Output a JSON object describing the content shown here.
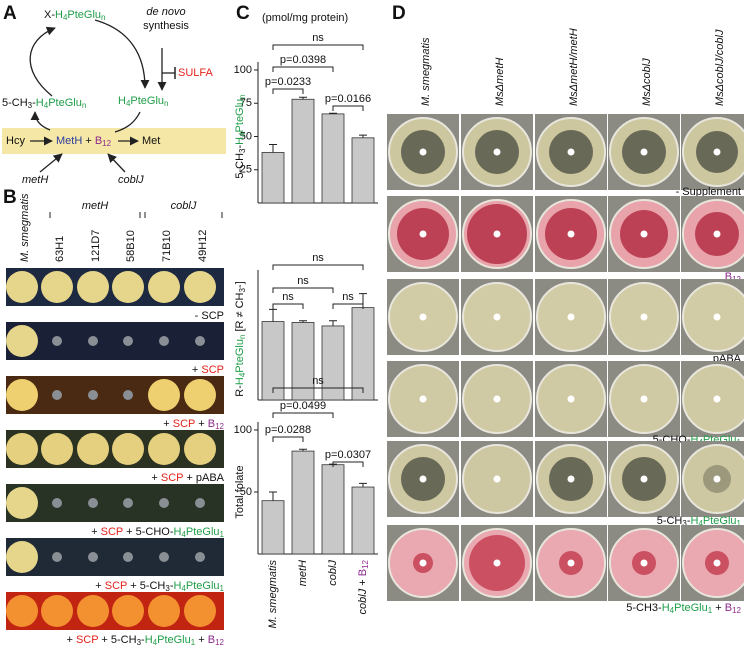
{
  "panel_labels": [
    "A",
    "B",
    "C",
    "D"
  ],
  "diagram": {
    "labels": [
      [
        {
          "t": "X-"
        },
        {
          "t": "H",
          "c": "#1f9e48"
        },
        {
          "t": "4",
          "c": "#1f9e48",
          "sub": true
        },
        {
          "t": "PteGlu",
          "c": "#1f9e48"
        },
        {
          "t": "n",
          "c": "#1f9e48",
          "sub": true
        }
      ],
      [
        {
          "t": "de novo",
          "i": true
        }
      ],
      [
        {
          "t": "synthesis"
        }
      ],
      [
        {
          "t": "SULFA",
          "c": "#e2231a"
        }
      ],
      [
        {
          "t": "5-CH"
        },
        {
          "t": "3",
          "sub": true
        },
        {
          "t": "-"
        },
        {
          "t": "H",
          "c": "#1f9e48"
        },
        {
          "t": "4",
          "c": "#1f9e48",
          "sub": true
        },
        {
          "t": "PteGlu",
          "c": "#1f9e48"
        },
        {
          "t": "n",
          "c": "#1f9e48",
          "sub": true
        }
      ],
      [
        {
          "t": "H",
          "c": "#1f9e48"
        },
        {
          "t": "4",
          "c": "#1f9e48",
          "sub": true
        },
        {
          "t": "PteGlu",
          "c": "#1f9e48"
        },
        {
          "t": "n",
          "c": "#1f9e48",
          "sub": true
        }
      ],
      [
        {
          "t": "Hcy"
        }
      ],
      [
        {
          "t": "MetH",
          "c": "#2b3c9c"
        },
        {
          "t": " + "
        },
        {
          "t": "B",
          "c": "#8e2a8e"
        },
        {
          "t": "12",
          "c": "#8e2a8e",
          "sub": true
        }
      ],
      [
        {
          "t": "Met"
        }
      ],
      [
        {
          "t": "metH",
          "i": true
        }
      ],
      [
        {
          "t": "coblJ",
          "i": true
        }
      ]
    ]
  },
  "growth": {
    "columns": [
      "M. smegmatis",
      "63H1",
      "121D7",
      "58B10",
      "71B10",
      "49H12"
    ],
    "groups": [
      "metH",
      "coblJ"
    ],
    "row_labels": [
      [
        {
          "t": "- SCP"
        }
      ],
      [
        {
          "t": "+ "
        },
        {
          "t": "SCP",
          "c": "#e2231a"
        }
      ],
      [
        {
          "t": "+ "
        },
        {
          "t": "SCP",
          "c": "#e2231a"
        },
        {
          "t": " + "
        },
        {
          "t": "B",
          "c": "#8e2a8e"
        },
        {
          "t": "12",
          "c": "#8e2a8e",
          "sub": true
        }
      ],
      [
        {
          "t": "+ "
        },
        {
          "t": "SCP",
          "c": "#e2231a"
        },
        {
          "t": " + pABA"
        }
      ],
      [
        {
          "t": "+ "
        },
        {
          "t": "SCP",
          "c": "#e2231a"
        },
        {
          "t": " + 5-CHO-"
        },
        {
          "t": "H",
          "c": "#1f9e48"
        },
        {
          "t": "4",
          "c": "#1f9e48",
          "sub": true
        },
        {
          "t": "PteGlu",
          "c": "#1f9e48"
        },
        {
          "t": "1",
          "c": "#1f9e48",
          "sub": true
        }
      ],
      [
        {
          "t": "+ "
        },
        {
          "t": "SCP",
          "c": "#e2231a"
        },
        {
          "t": " + 5-CH"
        },
        {
          "t": "3",
          "sub": true
        },
        {
          "t": "-"
        },
        {
          "t": "H",
          "c": "#1f9e48"
        },
        {
          "t": "4",
          "c": "#1f9e48",
          "sub": true
        },
        {
          "t": "PteGlu",
          "c": "#1f9e48"
        },
        {
          "t": "1",
          "c": "#1f9e48",
          "sub": true
        }
      ],
      [
        {
          "t": "+ "
        },
        {
          "t": "SCP",
          "c": "#e2231a"
        },
        {
          "t": " + 5-CH"
        },
        {
          "t": "3",
          "sub": true
        },
        {
          "t": "-"
        },
        {
          "t": "H",
          "c": "#1f9e48"
        },
        {
          "t": "4",
          "c": "#1f9e48",
          "sub": true
        },
        {
          "t": "PteGlu",
          "c": "#1f9e48"
        },
        {
          "t": "1",
          "c": "#1f9e48",
          "sub": true
        },
        {
          "t": " + "
        },
        {
          "t": "B",
          "c": "#8e2a8e"
        },
        {
          "t": "12",
          "c": "#8e2a8e",
          "sub": true
        }
      ]
    ]
  },
  "plates": {
    "columns": [
      "M. smegmatis",
      "MsΔmetH",
      "MsΔmetH/metH",
      "MsΔcoblJ",
      "MsΔcoblJ/coblJ"
    ],
    "row_labels": [
      [
        {
          "t": "- Supplement"
        }
      ],
      [
        {
          "t": "B",
          "c": "#8e2a8e"
        },
        {
          "t": "12",
          "c": "#8e2a8e",
          "sub": true
        }
      ],
      [
        {
          "t": "pABA"
        }
      ],
      [
        {
          "t": "5-CHO-"
        },
        {
          "t": "H",
          "c": "#1f9e48"
        },
        {
          "t": "4",
          "c": "#1f9e48",
          "sub": true
        },
        {
          "t": "PteGlu",
          "c": "#1f9e48"
        },
        {
          "t": "1",
          "c": "#1f9e48",
          "sub": true
        }
      ],
      [
        {
          "t": "5-CH"
        },
        {
          "t": "3",
          "sub": true
        },
        {
          "t": "-"
        },
        {
          "t": "H",
          "c": "#1f9e48"
        },
        {
          "t": "4",
          "c": "#1f9e48",
          "sub": true
        },
        {
          "t": "PteGlu",
          "c": "#1f9e48"
        },
        {
          "t": "1",
          "c": "#1f9e48",
          "sub": true
        }
      ],
      [
        {
          "t": "5-CH3-"
        },
        {
          "t": "H",
          "c": "#1f9e48"
        },
        {
          "t": "4",
          "c": "#1f9e48",
          "sub": true
        },
        {
          "t": "PteGlu",
          "c": "#1f9e48"
        },
        {
          "t": "1",
          "c": "#1f9e48",
          "sub": true
        },
        {
          "t": " + "
        },
        {
          "t": "B",
          "c": "#8e2a8e"
        },
        {
          "t": "12",
          "c": "#8e2a8e",
          "sub": true
        }
      ]
    ]
  },
  "chart_data": [
    {
      "type": "bar",
      "subtitle": "(pmol/mg protein)",
      "y_label": [
        {
          "t": "5-CH"
        },
        {
          "t": "3",
          "sub": true
        },
        {
          "t": "-"
        },
        {
          "t": "H",
          "c": "#1f9e48"
        },
        {
          "t": "4",
          "c": "#1f9e48",
          "sub": true
        },
        {
          "t": "PteGlu",
          "c": "#1f9e48"
        },
        {
          "t": "n",
          "c": "#1f9e48",
          "sub": true
        }
      ],
      "values": [
        38,
        78,
        67,
        49
      ],
      "errors": [
        6,
        1.5,
        0.5,
        2
      ],
      "color": "#c8c8c8",
      "ylim": [
        0,
        100
      ],
      "yticks": [
        25,
        50,
        75,
        100
      ],
      "annotations": [
        {
          "label": "ns",
          "from": 0,
          "to": 3
        },
        {
          "label": "p=0.0398",
          "from": 0,
          "to": 2
        },
        {
          "label": "p=0.0233",
          "from": 0,
          "to": 1
        },
        {
          "label": "p=0.0166",
          "from": 2,
          "to": 3
        }
      ]
    },
    {
      "type": "bar",
      "y_label": [
        {
          "t": "R-"
        },
        {
          "t": "H",
          "c": "#1f9e48"
        },
        {
          "t": "4",
          "c": "#1f9e48",
          "sub": true
        },
        {
          "t": "PteGlu",
          "c": "#1f9e48"
        },
        {
          "t": "n",
          "c": "#1f9e48",
          "sub": true
        },
        {
          "t": " [R ≠ CH"
        },
        {
          "t": "3",
          "sub": true
        },
        {
          "t": "-]"
        }
      ],
      "values": [
        4.5,
        4.45,
        4.25,
        5.3
      ],
      "errors": [
        0.7,
        0.1,
        0.3,
        0.8
      ],
      "color": "#c8c8c8",
      "ylim": [
        0,
        7
      ],
      "yticks": [],
      "annotations": [
        {
          "label": "ns",
          "from": 0,
          "to": 3
        },
        {
          "label": "ns",
          "from": 0,
          "to": 2
        },
        {
          "label": "ns",
          "from": 0,
          "to": 1
        },
        {
          "label": "ns",
          "from": 2,
          "to": 3
        }
      ]
    },
    {
      "type": "bar",
      "y_label": [
        {
          "t": "Total folate"
        }
      ],
      "categories": [
        [
          {
            "t": "M. smegmatis",
            "i": true
          }
        ],
        [
          {
            "t": "metH",
            "i": true
          }
        ],
        [
          {
            "t": "coblJ",
            "i": true
          }
        ],
        [
          {
            "t": "coblJ",
            "i": true
          },
          {
            "t": " + "
          },
          {
            "t": "B",
            "c": "#8e2a8e"
          },
          {
            "t": "12",
            "c": "#8e2a8e",
            "sub": true
          }
        ]
      ],
      "values": [
        43,
        83,
        72,
        54
      ],
      "errors": [
        7,
        1.5,
        0.5,
        3
      ],
      "color": "#c8c8c8",
      "ylim": [
        0,
        100
      ],
      "yticks": [
        50,
        100
      ],
      "annotations": [
        {
          "label": "ns",
          "from": 0,
          "to": 3
        },
        {
          "label": "p=0.0499",
          "from": 0,
          "to": 2
        },
        {
          "label": "p=0.0288",
          "from": 0,
          "to": 1
        },
        {
          "label": "p=0.0307",
          "from": 2,
          "to": 3
        }
      ]
    }
  ]
}
